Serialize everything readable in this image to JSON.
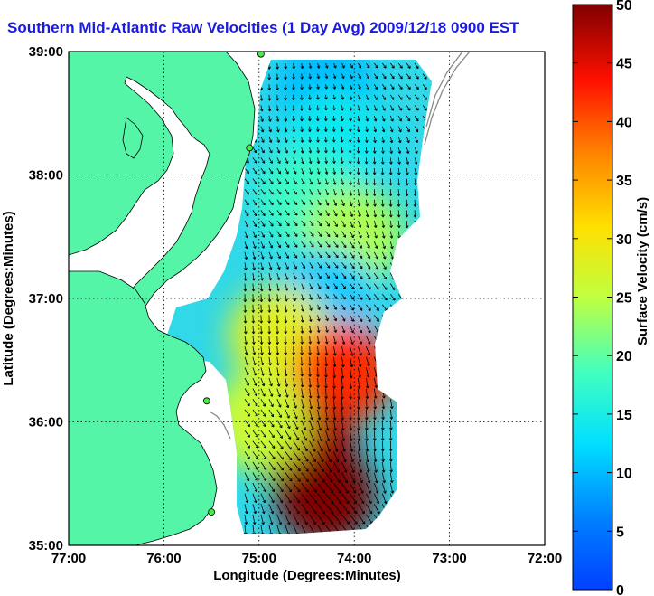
{
  "title": "Southern Mid-Atlantic Raw Velocities (1 Day Avg) 2009/12/18 0900 EST",
  "map": {
    "xlabel": "Longitude (Degrees:Minutes)",
    "ylabel": "Latitude (Degrees:Minutes)",
    "x_ticks": [
      "77:00",
      "76:00",
      "75:00",
      "74:00",
      "73:00",
      "72:00"
    ],
    "y_ticks": [
      "39:00",
      "38:00",
      "37:00",
      "36:00",
      "35:00"
    ],
    "lon_range": [
      -77,
      -72
    ],
    "lat_range": [
      35,
      39
    ],
    "grid": "dotted",
    "colors": {
      "land": "#55f5a8",
      "water": "#ffffff",
      "title": "#1a1ae6",
      "site_marker": "#44ee44"
    }
  },
  "colorbar": {
    "label": "Surface Velocity (cm/s)",
    "ticks": [
      "0",
      "5",
      "10",
      "15",
      "20",
      "25",
      "30",
      "35",
      "40",
      "45",
      "50"
    ],
    "range": [
      0,
      50
    ],
    "colormap": "jet"
  },
  "chart_data": {
    "type": "heatmap",
    "quantity": "surface current speed",
    "units": "cm/s",
    "regions": [
      {
        "lat": 38.7,
        "lon": -74.3,
        "speed": 10
      },
      {
        "lat": 38.3,
        "lon": -74.2,
        "speed": 14
      },
      {
        "lat": 37.8,
        "lon": -74.5,
        "speed": 18
      },
      {
        "lat": 37.5,
        "lon": -74.0,
        "speed": 24
      },
      {
        "lat": 37.0,
        "lon": -74.3,
        "speed": 11
      },
      {
        "lat": 36.7,
        "lon": -74.8,
        "speed": 28
      },
      {
        "lat": 36.4,
        "lon": -74.1,
        "speed": 42
      },
      {
        "lat": 35.8,
        "lon": -74.5,
        "speed": 48
      },
      {
        "lat": 35.4,
        "lon": -74.3,
        "speed": 50
      },
      {
        "lat": 36.0,
        "lon": -75.0,
        "speed": 26
      }
    ],
    "sites": [
      {
        "lat": 38.98,
        "lon": -74.98
      },
      {
        "lat": 38.22,
        "lon": -75.1
      },
      {
        "lat": 36.17,
        "lon": -75.55
      },
      {
        "lat": 35.27,
        "lon": -75.5
      }
    ]
  }
}
